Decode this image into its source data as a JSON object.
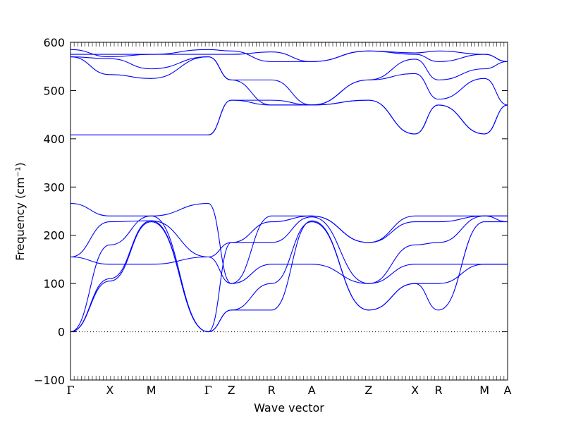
{
  "chart_data": {
    "type": "line",
    "title": "",
    "xlabel": "Wave vector",
    "ylabel": "Frequency (cm⁻¹)",
    "ylim": [
      -100,
      600
    ],
    "yticks": [
      -100,
      0,
      100,
      200,
      300,
      400,
      500,
      600
    ],
    "grid": false,
    "legend": "none",
    "line_color": "#0000ff",
    "zero_line": {
      "y": 0,
      "style": "dotted",
      "color": "#000000"
    },
    "xlim": [
      0,
      1
    ],
    "high_symmetry_points": [
      {
        "label": "Γ",
        "x": 0.0
      },
      {
        "label": "X",
        "x": 0.09
      },
      {
        "label": "M",
        "x": 0.185
      },
      {
        "label": "Γ",
        "x": 0.315
      },
      {
        "label": "Z",
        "x": 0.368
      },
      {
        "label": "R",
        "x": 0.46
      },
      {
        "label": "A",
        "x": 0.552
      },
      {
        "label": "Z",
        "x": 0.682
      },
      {
        "label": "X",
        "x": 0.788
      },
      {
        "label": "R",
        "x": 0.842
      },
      {
        "label": "M",
        "x": 0.947
      },
      {
        "label": "A",
        "x": 1.0
      }
    ],
    "series": [
      {
        "x": [
          0,
          0.09,
          0.185,
          0.315,
          0.368,
          0.46,
          0.552,
          0.682,
          0.788,
          0.842,
          0.947,
          1.0
        ],
        "values": [
          0,
          105,
          228,
          0,
          45,
          45,
          230,
          45,
          100,
          45,
          228,
          228
        ]
      },
      {
        "x": [
          0,
          0.09,
          0.185,
          0.315,
          0.368,
          0.46,
          0.552,
          0.682,
          0.788,
          0.842,
          0.947,
          1.0
        ],
        "values": [
          0,
          110,
          230,
          0,
          45,
          100,
          228,
          45,
          100,
          100,
          140,
          140
        ]
      },
      {
        "x": [
          0,
          0.09,
          0.185,
          0.315,
          0.368,
          0.46,
          0.552,
          0.682,
          0.788,
          0.842,
          0.947,
          1.0
        ],
        "values": [
          0,
          180,
          240,
          0,
          185,
          185,
          238,
          100,
          180,
          185,
          240,
          240
        ]
      },
      {
        "x": [
          0,
          0.09,
          0.185,
          0.315,
          0.368,
          0.46,
          0.552,
          0.682,
          0.788,
          0.842,
          0.947,
          1.0
        ],
        "values": [
          155,
          140,
          140,
          155,
          100,
          140,
          140,
          100,
          140,
          140,
          140,
          140
        ]
      },
      {
        "x": [
          0,
          0.09,
          0.185,
          0.315,
          0.368,
          0.46,
          0.552,
          0.682,
          0.788,
          0.842,
          0.947,
          1.0
        ],
        "values": [
          155,
          228,
          230,
          155,
          185,
          228,
          240,
          185,
          228,
          228,
          240,
          228
        ]
      },
      {
        "x": [
          0,
          0.09,
          0.185,
          0.315,
          0.368,
          0.46,
          0.552,
          0.682,
          0.788,
          0.842,
          0.947,
          1.0
        ],
        "values": [
          266,
          240,
          240,
          266,
          100,
          240,
          240,
          185,
          240,
          240,
          240,
          240
        ]
      },
      {
        "x": [
          0,
          0.09,
          0.185,
          0.315,
          0.368,
          0.46,
          0.552,
          0.682,
          0.788,
          0.842,
          0.947,
          1.0
        ],
        "values": [
          408,
          408,
          408,
          408,
          480,
          470,
          470,
          480,
          410,
          470,
          410,
          470
        ]
      },
      {
        "x": [
          0,
          0.09,
          0.185,
          0.315,
          0.368,
          0.46,
          0.552,
          0.682,
          0.788,
          0.842,
          0.947,
          1.0
        ],
        "values": [
          408,
          408,
          408,
          408,
          480,
          480,
          470,
          480,
          410,
          470,
          410,
          470
        ]
      },
      {
        "x": [
          0,
          0.09,
          0.185,
          0.315,
          0.368,
          0.46,
          0.552,
          0.682,
          0.788,
          0.842,
          0.947,
          1.0
        ],
        "values": [
          570,
          533,
          525,
          570,
          522,
          522,
          470,
          522,
          535,
          482,
          525,
          470
        ]
      },
      {
        "x": [
          0,
          0.09,
          0.185,
          0.315,
          0.368,
          0.46,
          0.552,
          0.682,
          0.788,
          0.842,
          0.947,
          1.0
        ],
        "values": [
          570,
          566,
          545,
          570,
          522,
          470,
          470,
          522,
          565,
          522,
          545,
          560
        ]
      },
      {
        "x": [
          0,
          0.09,
          0.185,
          0.315,
          0.368,
          0.46,
          0.552,
          0.682,
          0.788,
          0.842,
          0.947,
          1.0
        ],
        "values": [
          575,
          575,
          575,
          575,
          575,
          580,
          560,
          582,
          575,
          560,
          575,
          560
        ]
      },
      {
        "x": [
          0,
          0.09,
          0.185,
          0.315,
          0.368,
          0.46,
          0.552,
          0.682,
          0.788,
          0.842,
          0.947,
          1.0
        ],
        "values": [
          585,
          570,
          575,
          585,
          582,
          560,
          560,
          582,
          578,
          582,
          575,
          560
        ]
      }
    ]
  }
}
